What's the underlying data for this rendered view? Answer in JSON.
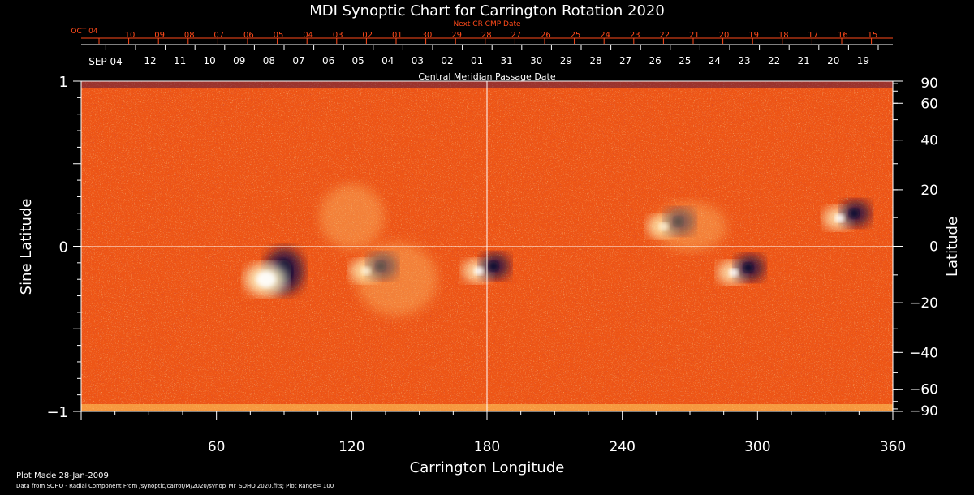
{
  "chart_data": {
    "type": "heatmap",
    "title": "MDI Synoptic Chart for Carrington Rotation 2020",
    "xlabel": "Carrington Longitude",
    "ylabel_left": "Sine Latitude",
    "ylabel_right": "Latitude",
    "xlim": [
      0,
      360
    ],
    "ylim": [
      -1,
      1
    ],
    "x_ticks": [
      60,
      120,
      180,
      240,
      300,
      360
    ],
    "y_left_ticks": [
      {
        "value": 1,
        "label": "1"
      },
      {
        "value": 0,
        "label": "0"
      },
      {
        "value": -1,
        "label": "−1"
      }
    ],
    "y_right_ticks": [
      90,
      60,
      40,
      20,
      0,
      -20,
      -40,
      -60,
      -90
    ],
    "y_right_tick_labels": [
      "90",
      "60",
      "40",
      "20",
      "0",
      "−20",
      "−40",
      "−60",
      "−90"
    ],
    "top_axis_red": {
      "label": "Next CR CMP Date",
      "start_label": "OCT 04",
      "dates": [
        "10",
        "09",
        "08",
        "07",
        "06",
        "05",
        "04",
        "03",
        "02",
        "01",
        "30",
        "29",
        "28",
        "27",
        "26",
        "25",
        "24",
        "23",
        "22",
        "21",
        "20",
        "19",
        "18",
        "17",
        "16",
        "15"
      ]
    },
    "top_axis_white": {
      "label": "Central Meridian Passage Date",
      "start_label": "SEP 04",
      "dates": [
        "12",
        "11",
        "10",
        "09",
        "08",
        "07",
        "06",
        "05",
        "04",
        "03",
        "02",
        "01",
        "31",
        "30",
        "29",
        "28",
        "27",
        "26",
        "25",
        "24",
        "23",
        "22",
        "21",
        "20",
        "19"
      ]
    },
    "grid": "crosshair at longitude 180 and sine latitude 0",
    "colors": {
      "background": "#000000",
      "field": "#f05a14",
      "positive": "#fff3b0",
      "negative": "#141046",
      "red_axis": "#ff4a1a"
    },
    "active_regions": [
      {
        "lon": 90,
        "sinlat": -0.15,
        "polarity": "negative"
      },
      {
        "lon": 82,
        "sinlat": -0.2,
        "polarity": "positive"
      },
      {
        "lon": 130,
        "sinlat": -0.14,
        "polarity": "mixed"
      },
      {
        "lon": 180,
        "sinlat": -0.14,
        "polarity": "mixed"
      },
      {
        "lon": 262,
        "sinlat": 0.13,
        "polarity": "mixed"
      },
      {
        "lon": 293,
        "sinlat": -0.15,
        "polarity": "mixed"
      },
      {
        "lon": 340,
        "sinlat": 0.18,
        "polarity": "mixed"
      }
    ]
  },
  "footer": {
    "plot_made": "Plot Made 28-Jan-2009",
    "source": "Data from SOHO - Radial Component From /synoptic/carrot/M/2020/synop_Mr_SOHO.2020.fits; Plot Range= 100"
  }
}
